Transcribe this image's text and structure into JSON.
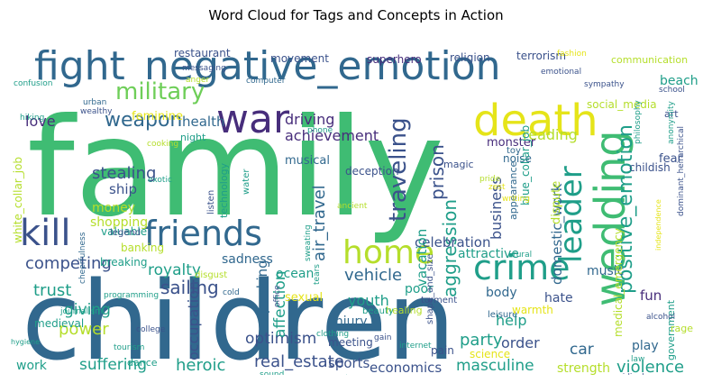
{
  "title": "Word Cloud for Tags and Concepts in Action",
  "palette": {
    "green": "#3fbc73",
    "lime": "#b5de2b",
    "yellow": "#e5e419",
    "teal": "#1f9e89",
    "blue": "#31688e",
    "darkblue": "#3b528b",
    "purple": "#472d7b",
    "indigo": "#482878",
    "lightgreen": "#6ece58",
    "cyan": "#26828e"
  },
  "words": [
    {
      "text": "family",
      "color": "green"
    },
    {
      "text": "children",
      "color": "blue"
    },
    {
      "text": "fight",
      "color": "blue"
    },
    {
      "text": "negative_emotion",
      "color": "blue"
    },
    {
      "text": "death",
      "color": "yellow"
    },
    {
      "text": "war",
      "color": "purple"
    },
    {
      "text": "wedding",
      "color": "green"
    },
    {
      "text": "friends",
      "color": "blue"
    },
    {
      "text": "kill",
      "color": "darkblue"
    },
    {
      "text": "home",
      "color": "lime"
    },
    {
      "text": "crime",
      "color": "teal"
    },
    {
      "text": "leader",
      "color": "teal"
    },
    {
      "text": "military",
      "color": "lightgreen"
    },
    {
      "text": "weapon",
      "color": "blue"
    },
    {
      "text": "positive_emotion",
      "color": "teal"
    },
    {
      "text": "aggression",
      "color": "teal"
    },
    {
      "text": "traveling",
      "color": "darkblue"
    },
    {
      "text": "prison",
      "color": "darkblue"
    },
    {
      "text": "stealing",
      "color": "darkblue"
    },
    {
      "text": "love",
      "color": "purple"
    },
    {
      "text": "health",
      "color": "blue"
    },
    {
      "text": "driving",
      "color": "purple"
    },
    {
      "text": "achievement",
      "color": "purple"
    },
    {
      "text": "reading",
      "color": "lime"
    },
    {
      "text": "feminine",
      "color": "yellow"
    },
    {
      "text": "musical",
      "color": "blue"
    },
    {
      "text": "celebration",
      "color": "darkblue"
    },
    {
      "text": "business",
      "color": "darkblue"
    },
    {
      "text": "vacation",
      "color": "teal"
    },
    {
      "text": "air_travel",
      "color": "blue"
    },
    {
      "text": "domestic_work",
      "color": "blue"
    },
    {
      "text": "competing",
      "color": "darkblue"
    },
    {
      "text": "royalty",
      "color": "teal"
    },
    {
      "text": "vehicle",
      "color": "blue"
    },
    {
      "text": "sailing",
      "color": "darkblue"
    },
    {
      "text": "trust",
      "color": "teal"
    },
    {
      "text": "youth",
      "color": "teal"
    },
    {
      "text": "attractive",
      "color": "teal"
    },
    {
      "text": "body",
      "color": "blue"
    },
    {
      "text": "hate",
      "color": "darkblue"
    },
    {
      "text": "music",
      "color": "blue"
    },
    {
      "text": "fun",
      "color": "purple"
    },
    {
      "text": "party",
      "color": "teal"
    },
    {
      "text": "violence",
      "color": "teal"
    },
    {
      "text": "masculine",
      "color": "teal"
    },
    {
      "text": "economics",
      "color": "darkblue"
    },
    {
      "text": "real_estate",
      "color": "darkblue"
    },
    {
      "text": "heroic",
      "color": "teal"
    },
    {
      "text": "suffering",
      "color": "teal"
    },
    {
      "text": "work",
      "color": "teal"
    },
    {
      "text": "power",
      "color": "lime"
    },
    {
      "text": "giving",
      "color": "teal"
    },
    {
      "text": "optimism",
      "color": "darkblue"
    },
    {
      "text": "affection",
      "color": "teal"
    },
    {
      "text": "occupation",
      "color": "darkblue"
    },
    {
      "text": "speaking",
      "color": "blue"
    },
    {
      "text": "sports",
      "color": "darkblue"
    },
    {
      "text": "help",
      "color": "teal"
    },
    {
      "text": "order",
      "color": "darkblue"
    },
    {
      "text": "car",
      "color": "blue"
    },
    {
      "text": "play",
      "color": "blue"
    },
    {
      "text": "strength",
      "color": "lime"
    },
    {
      "text": "science",
      "color": "yellow"
    },
    {
      "text": "meeting",
      "color": "darkblue"
    },
    {
      "text": "injury",
      "color": "blue"
    },
    {
      "text": "pain",
      "color": "darkblue"
    },
    {
      "text": "shopping",
      "color": "lime"
    },
    {
      "text": "money",
      "color": "lime"
    },
    {
      "text": "ship",
      "color": "darkblue"
    },
    {
      "text": "sadness",
      "color": "blue"
    },
    {
      "text": "ocean",
      "color": "teal"
    },
    {
      "text": "poor",
      "color": "teal"
    },
    {
      "text": "sexual",
      "color": "yellow"
    },
    {
      "text": "dispute",
      "color": "lime"
    },
    {
      "text": "fear",
      "color": "darkblue"
    },
    {
      "text": "childish",
      "color": "darkblue"
    },
    {
      "text": "monster",
      "color": "purple"
    },
    {
      "text": "noise",
      "color": "blue"
    },
    {
      "text": "blue_collar_job",
      "color": "teal"
    },
    {
      "text": "appearance",
      "color": "blue"
    },
    {
      "text": "white_collar_job",
      "color": "lime"
    },
    {
      "text": "medical_emergency",
      "color": "lime"
    },
    {
      "text": "government",
      "color": "teal"
    },
    {
      "text": "social_media",
      "color": "lime"
    },
    {
      "text": "beach",
      "color": "teal"
    },
    {
      "text": "art",
      "color": "darkblue"
    },
    {
      "text": "restaurant",
      "color": "darkblue"
    },
    {
      "text": "movement",
      "color": "darkblue"
    },
    {
      "text": "superhero",
      "color": "purple"
    },
    {
      "text": "religion",
      "color": "darkblue"
    },
    {
      "text": "terrorism",
      "color": "darkblue"
    },
    {
      "text": "communication",
      "color": "lime"
    },
    {
      "text": "deception",
      "color": "darkblue"
    },
    {
      "text": "magic",
      "color": "darkblue"
    },
    {
      "text": "toy",
      "color": "blue"
    },
    {
      "text": "emotional",
      "color": "darkblue"
    },
    {
      "text": "fashion",
      "color": "yellow"
    },
    {
      "text": "sympathy",
      "color": "darkblue"
    },
    {
      "text": "philosophy",
      "color": "teal"
    },
    {
      "text": "anonymity",
      "color": "teal"
    },
    {
      "text": "dominant_heirarchical",
      "color": "darkblue"
    },
    {
      "text": "school",
      "color": "darkblue"
    },
    {
      "text": "messaging",
      "color": "darkblue"
    },
    {
      "text": "anger",
      "color": "lime"
    },
    {
      "text": "confusion",
      "color": "teal"
    },
    {
      "text": "hiking",
      "color": "teal"
    },
    {
      "text": "urban",
      "color": "blue"
    },
    {
      "text": "wealthy",
      "color": "darkblue"
    },
    {
      "text": "computer",
      "color": "blue"
    },
    {
      "text": "night",
      "color": "teal"
    },
    {
      "text": "valuable",
      "color": "teal"
    },
    {
      "text": "cooking",
      "color": "lime"
    },
    {
      "text": "exotic",
      "color": "teal"
    },
    {
      "text": "technology",
      "color": "teal"
    },
    {
      "text": "water",
      "color": "teal"
    },
    {
      "text": "listen",
      "color": "darkblue"
    },
    {
      "text": "phone",
      "color": "teal"
    },
    {
      "text": "pride",
      "color": "lime"
    },
    {
      "text": "zest",
      "color": "yellow"
    },
    {
      "text": "writing",
      "color": "yellow"
    },
    {
      "text": "independence",
      "color": "yellow"
    },
    {
      "text": "legend",
      "color": "darkblue"
    },
    {
      "text": "banking",
      "color": "lime"
    },
    {
      "text": "breaking",
      "color": "teal"
    },
    {
      "text": "disgust",
      "color": "lime"
    },
    {
      "text": "ancient",
      "color": "lime"
    },
    {
      "text": "rural",
      "color": "teal"
    },
    {
      "text": "journalism",
      "color": "teal"
    },
    {
      "text": "programming",
      "color": "teal"
    },
    {
      "text": "cold",
      "color": "blue"
    },
    {
      "text": "healing",
      "color": "lime"
    },
    {
      "text": "alcohol",
      "color": "darkblue"
    },
    {
      "text": "rage",
      "color": "lime"
    },
    {
      "text": "cheerfulness",
      "color": "blue"
    },
    {
      "text": "office",
      "color": "darkblue"
    },
    {
      "text": "sweating",
      "color": "teal"
    },
    {
      "text": "tears",
      "color": "teal"
    },
    {
      "text": "beauty",
      "color": "teal"
    },
    {
      "text": "torment",
      "color": "darkblue"
    },
    {
      "text": "shape_and_size",
      "color": "darkblue"
    },
    {
      "text": "leisure",
      "color": "blue"
    },
    {
      "text": "warmth",
      "color": "yellow"
    },
    {
      "text": "medieval",
      "color": "teal"
    },
    {
      "text": "hygiene",
      "color": "teal"
    },
    {
      "text": "college",
      "color": "darkblue"
    },
    {
      "text": "clothing",
      "color": "teal"
    },
    {
      "text": "gain",
      "color": "darkblue"
    },
    {
      "text": "internet",
      "color": "teal"
    },
    {
      "text": "tourism",
      "color": "teal"
    },
    {
      "text": "dance",
      "color": "teal"
    },
    {
      "text": "sound",
      "color": "teal"
    },
    {
      "text": "pet",
      "color": "teal"
    },
    {
      "text": "hearing",
      "color": "darkblue"
    },
    {
      "text": "law",
      "color": "teal"
    },
    {
      "text": "ridicule",
      "color": "darkblue"
    }
  ]
}
